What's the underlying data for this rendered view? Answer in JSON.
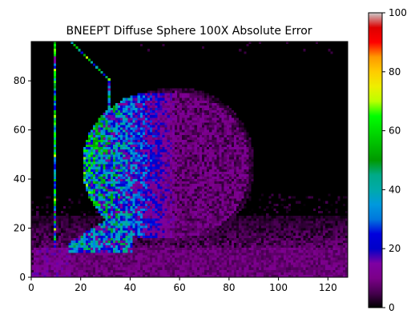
{
  "chart_data": {
    "type": "heatmap",
    "title": "BNEEPT Diffuse Sphere 100X Absolute Error",
    "xlabel": "",
    "ylabel": "",
    "xlim": [
      0,
      128
    ],
    "ylim": [
      0,
      96
    ],
    "x_ticks": [
      0,
      20,
      40,
      60,
      80,
      100,
      120
    ],
    "y_ticks": [
      0,
      20,
      40,
      60,
      80
    ],
    "grid": false,
    "grid_size": [
      128,
      96
    ],
    "colorbar": {
      "colormap": "nipy_spectral",
      "range": [
        0,
        100
      ],
      "ticks": [
        0,
        20,
        40,
        60,
        80,
        100
      ]
    },
    "regions": [
      {
        "name": "floor noise band",
        "x_range": [
          0,
          128
        ],
        "y_range": [
          0,
          25
        ],
        "typical_value": 8
      },
      {
        "name": "sphere lit side",
        "center": [
          50,
          45
        ],
        "radius": 30,
        "typical_value": 22
      },
      {
        "name": "sphere shadow side",
        "center": [
          58,
          45
        ],
        "radius": 30,
        "typical_value": 9
      },
      {
        "name": "light column left edge",
        "x": 9,
        "y_range": [
          12,
          95
        ],
        "typical_value": 40
      },
      {
        "name": "light column right edge",
        "x": 31,
        "y_range": [
          15,
          80
        ],
        "typical_value": 30
      },
      {
        "name": "light column top diagonal",
        "from": [
          16,
          95
        ],
        "to": [
          31,
          80
        ],
        "typical_value": 45
      },
      {
        "name": "floor contact glow",
        "x_range": [
          15,
          40
        ],
        "y_range": [
          10,
          25
        ],
        "typical_value": 35
      }
    ]
  }
}
